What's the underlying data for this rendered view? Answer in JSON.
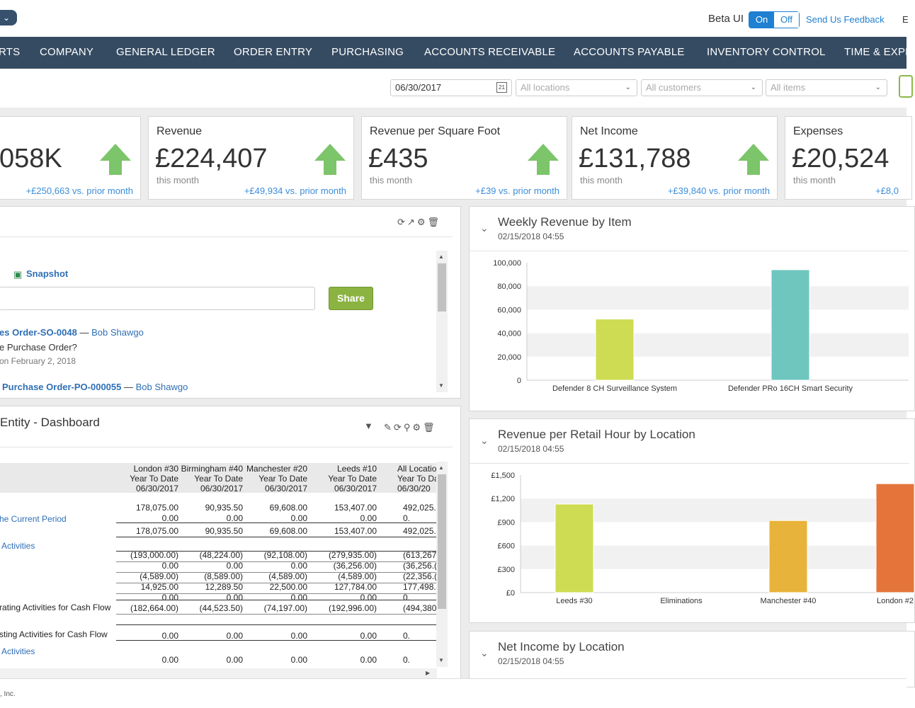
{
  "topbar": {
    "beta_label": "Beta UI",
    "toggle_on": "On",
    "toggle_off": "Off",
    "feedback": "Send Us Feedback",
    "extra": "E"
  },
  "nav": {
    "items": [
      "RTS",
      "COMPANY",
      "GENERAL LEDGER",
      "ORDER ENTRY",
      "PURCHASING",
      "ACCOUNTS RECEIVABLE",
      "ACCOUNTS PAYABLE",
      "INVENTORY CONTROL",
      "TIME & EXPE"
    ]
  },
  "filters": {
    "date": "06/30/2017",
    "locations": "All locations",
    "customers": "All customers",
    "items": "All items"
  },
  "kpis": [
    {
      "title": "",
      "value": "058K",
      "sub": "",
      "change": "+£250,663 vs. prior month"
    },
    {
      "title": "Revenue",
      "value": "£224,407",
      "sub": "this month",
      "change": "+£49,934 vs. prior month"
    },
    {
      "title": "Revenue per Square Foot",
      "value": "£435",
      "sub": "this month",
      "change": "+£39 vs. prior month"
    },
    {
      "title": "Net Income",
      "value": "£131,788",
      "sub": "this month",
      "change": "+£39,840 vs. prior month"
    },
    {
      "title": "Expenses",
      "value": "£20,524",
      "sub": "this month",
      "change": "+£8,0"
    }
  ],
  "feed": {
    "snapshot": "Snapshot",
    "share": "Share",
    "line1_link": "es Order-SO-0048",
    "line1_sep": " — ",
    "line1_user": "Bob Shawgo",
    "line2": "e Purchase Order?",
    "line3": "on February 2, 2018",
    "line4_link": "Purchase Order-PO-000055",
    "line4_sep": " — ",
    "line4_user": "Bob Shawgo"
  },
  "entity": {
    "title": "Entity - Dashboard",
    "columns": [
      {
        "l1": "London #30",
        "l2": "Year To Date",
        "l3": "06/30/2017"
      },
      {
        "l1": "Birmingham #40",
        "l2": "Year To Date",
        "l3": "06/30/2017"
      },
      {
        "l1": "Manchester #20",
        "l2": "Year To Date",
        "l3": "06/30/2017"
      },
      {
        "l1": "Leeds #10",
        "l2": "Year To Date",
        "l3": "06/30/2017"
      },
      {
        "l1": "All Locatio",
        "l2": "Year To Da",
        "l3": "06/30/20"
      }
    ],
    "labels": {
      "current_period": "he Current Period",
      "activities1": "Activities",
      "operating": "rating Activities for Cash Flow",
      "investing": "sting Activities for Cash Flow",
      "activities2": "Activities"
    },
    "rows": [
      [
        "178,075.00",
        "90,935.50",
        "69,608.00",
        "153,407.00",
        "492,025."
      ],
      [
        "0.00",
        "0.00",
        "0.00",
        "0.00",
        "0."
      ],
      [
        "178,075.00",
        "90,935.50",
        "69,608.00",
        "153,407.00",
        "492,025."
      ],
      [
        "(193,000.00)",
        "(48,224.00)",
        "(92,108.00)",
        "(279,935.00)",
        "(613,267.("
      ],
      [
        "0.00",
        "0.00",
        "0.00",
        "(36,256.00)",
        "(36,256.("
      ],
      [
        "(4,589.00)",
        "(8,589.00)",
        "(4,589.00)",
        "(4,589.00)",
        "(22,356.("
      ],
      [
        "14,925.00",
        "12,289.50",
        "22,500.00",
        "127,784.00",
        "177,498."
      ],
      [
        "0.00",
        "0.00",
        "0.00",
        "0.00",
        "0."
      ],
      [
        "(182,664.00)",
        "(44,523.50)",
        "(74,197.00)",
        "(192,996.00)",
        "(494,380.5"
      ],
      [
        "0.00",
        "0.00",
        "0.00",
        "0.00",
        "0."
      ],
      [
        "0.00",
        "0.00",
        "0.00",
        "0.00",
        "0."
      ]
    ]
  },
  "charts": {
    "weekly": {
      "title": "Weekly Revenue by Item",
      "date": "02/15/2018 04:55"
    },
    "retail": {
      "title": "Revenue per Retail Hour by Location",
      "date": "02/15/2018 04:55"
    },
    "netincome": {
      "title": "Net Income by Location",
      "date": "02/15/2018 04:55"
    }
  },
  "chart_data": [
    {
      "type": "bar",
      "title": "Weekly Revenue by Item",
      "categories": [
        "Defender 8 CH Surveillance System",
        "Defender PRo 16CH Smart Security"
      ],
      "values": [
        52000,
        94000
      ],
      "yticks": [
        "100,000",
        "80,000",
        "60,000",
        "40,000",
        "20,000",
        "0"
      ],
      "ylim": [
        0,
        100000
      ],
      "colors": [
        "#cddc52",
        "#6ec6bf"
      ]
    },
    {
      "type": "bar",
      "title": "Revenue per Retail Hour by Location",
      "categories": [
        "Leeds #30",
        "Eliminations",
        "Manchester #40",
        "London #2"
      ],
      "values": [
        1130,
        0,
        920,
        1390
      ],
      "yticks": [
        "£1,500",
        "£1,200",
        "£900",
        "£600",
        "£300",
        "£0"
      ],
      "ylim": [
        0,
        1500
      ],
      "colors": [
        "#cddc52",
        "#cddc52",
        "#e8b33a",
        "#e4743a"
      ]
    }
  ],
  "footer": {
    "text": ", Inc."
  },
  "colors": {
    "nav": "#354b62",
    "accent": "#1f7fd1",
    "up_arrow": "#7cc56a",
    "share": "#8bb341"
  }
}
